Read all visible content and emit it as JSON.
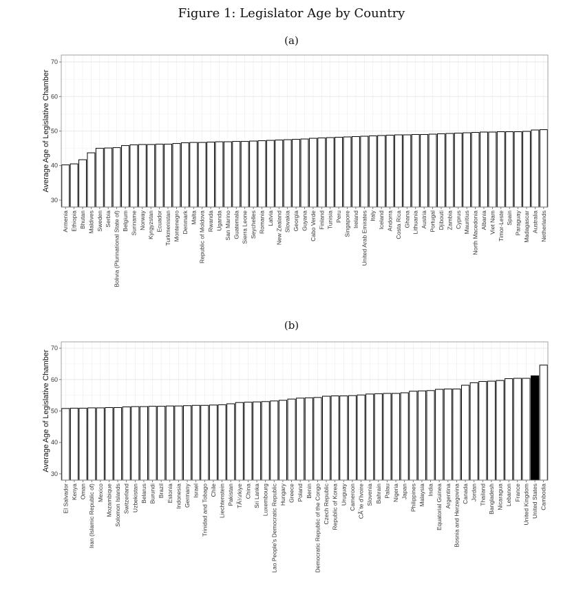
{
  "figure": {
    "title": "Figure 1: Legislator Age by Country",
    "panel_a_label": "(a)",
    "panel_b_label": "(b)"
  },
  "chart_data": [
    {
      "type": "bar",
      "panel": "(a)",
      "title": "",
      "xlabel": "",
      "ylabel": "Average Age of Legislative Chamber",
      "ylim": [
        28,
        72
      ],
      "yticks": [
        30,
        40,
        50,
        60,
        70
      ],
      "grid": true,
      "bar_color": "#ffffff",
      "categories": [
        "Armenia",
        "Ethiopia",
        "Bhutan",
        "Maldives",
        "Sweden",
        "Serbia",
        "Bolivia (Plurinational State of)",
        "Belgium",
        "Suriname",
        "Norway",
        "Kyrgyzstan",
        "Ecuador",
        "Turkmenistan",
        "Montenegro",
        "Denmark",
        "Malta",
        "Republic of Moldova",
        "Rwanda",
        "Uganda",
        "San Marino",
        "Guatemala",
        "Sierra Leone",
        "Seychelles",
        "Romania",
        "Latvia",
        "New Zealand",
        "Slovakia",
        "Georgia",
        "Guyana",
        "Cabo Verde",
        "Finland",
        "Tunisia",
        "Peru",
        "Singapore",
        "Ireland",
        "United Arab Emirates",
        "Italy",
        "Iceland",
        "Andorra",
        "Costa Rica",
        "Ghana",
        "Lithuania",
        "Austria",
        "Portugal",
        "Djibouti",
        "Zambia",
        "Cyprus",
        "Mauritius",
        "North Macedonia",
        "Albania",
        "Viet Nam",
        "Timor-Leste",
        "Spain",
        "Paraguay",
        "Madagascar",
        "Australia",
        "Netherlands"
      ],
      "values": [
        40.2,
        40.5,
        41.7,
        43.7,
        45.0,
        45.1,
        45.2,
        45.8,
        46.0,
        46.1,
        46.1,
        46.2,
        46.2,
        46.4,
        46.6,
        46.7,
        46.7,
        46.8,
        46.9,
        46.9,
        47.0,
        47.0,
        47.1,
        47.2,
        47.3,
        47.4,
        47.5,
        47.6,
        47.7,
        47.9,
        48.0,
        48.1,
        48.2,
        48.3,
        48.4,
        48.5,
        48.6,
        48.7,
        48.8,
        48.9,
        48.9,
        49.0,
        49.0,
        49.1,
        49.2,
        49.3,
        49.4,
        49.5,
        49.6,
        49.7,
        49.7,
        49.8,
        49.8,
        49.8,
        49.9,
        50.3,
        50.4
      ]
    },
    {
      "type": "bar",
      "panel": "(b)",
      "title": "",
      "xlabel": "",
      "ylabel": "Average Age of Legislative Chamber",
      "ylim": [
        28,
        72
      ],
      "yticks": [
        30,
        40,
        50,
        60,
        70
      ],
      "grid": true,
      "bar_color": "#ffffff",
      "highlight": {
        "category": "United States",
        "color": "#000000"
      },
      "categories": [
        "El Salvador",
        "Kenya",
        "Oman",
        "Iran (Islamic Republic of)",
        "Mexico",
        "Mozambique",
        "Solomon Islands",
        "Switzerland",
        "Uzbekistan",
        "Belarus",
        "Burundi",
        "Brazil",
        "Estonia",
        "Indonesia",
        "Germany",
        "Israel",
        "Trinidad and Tobago",
        "Chile",
        "Liechtenstein",
        "Pakistan",
        "TÃ¼rkiye",
        "China",
        "Sri Lanka",
        "Luxembourg",
        "Lao People's Democratic Republic",
        "Hungary",
        "Greece",
        "Poland",
        "Benin",
        "Democratic Republic of the Congo",
        "Czech Republic",
        "Republic of Korea",
        "Uruguay",
        "Cameroon",
        "CÃ´te d'Ivoire",
        "Slovenia",
        "Bahrain",
        "Palau",
        "Nigeria",
        "Japan",
        "Philippines",
        "Malaysia",
        "India",
        "Equatorial Guinea",
        "Argentina",
        "Bosnia and Herzegovina",
        "Canada",
        "Jordan",
        "Thailand",
        "Bangladesh",
        "Nicaragua",
        "Lebanon",
        "France",
        "United Kingdom",
        "United States",
        "Cambodia"
      ],
      "values": [
        50.8,
        50.9,
        50.9,
        51.0,
        51.0,
        51.1,
        51.1,
        51.3,
        51.4,
        51.4,
        51.5,
        51.5,
        51.6,
        51.6,
        51.7,
        51.8,
        51.8,
        51.9,
        52.0,
        52.3,
        52.7,
        52.8,
        52.9,
        53.0,
        53.2,
        53.4,
        53.8,
        54.1,
        54.2,
        54.3,
        54.7,
        54.8,
        54.8,
        54.9,
        55.1,
        55.4,
        55.5,
        55.6,
        55.6,
        55.8,
        56.3,
        56.4,
        56.5,
        56.9,
        57.0,
        57.0,
        58.2,
        59.0,
        59.4,
        59.5,
        59.7,
        60.3,
        60.4,
        60.4,
        61.2,
        64.6
      ]
    }
  ]
}
